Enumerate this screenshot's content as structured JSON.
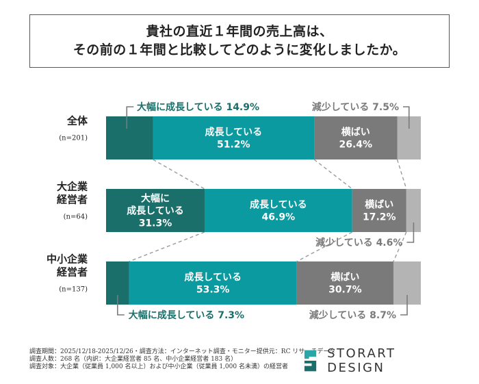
{
  "title": {
    "line1": "貴社の直近１年間の売上高は、",
    "line2": "その前の１年間と比較してどのように変化しましたか。"
  },
  "colors": {
    "dark_teal": "#1b6f6b",
    "teal": "#0a9aa0",
    "gray": "#7a7a7a",
    "light_gray": "#b4b4b4"
  },
  "chart_data": {
    "type": "stacked-bar",
    "orientation": "horizontal",
    "unit": "%",
    "groups": [
      {
        "label_lines": [
          "全体"
        ],
        "n_label": "(n=201)",
        "segments": [
          {
            "name": "大幅に成長している",
            "value": 14.9,
            "label": "大幅に成長している 14.9%"
          },
          {
            "name": "成長している",
            "value": 51.2,
            "label_lines": [
              "成長している",
              "51.2%"
            ]
          },
          {
            "name": "横ばい",
            "value": 26.4,
            "label_lines": [
              "横ばい",
              "26.4%"
            ]
          },
          {
            "name": "減少している",
            "value": 7.5,
            "label": "減少している 7.5%"
          }
        ]
      },
      {
        "label_lines": [
          "大企業",
          "経営者"
        ],
        "n_label": "(n=64)",
        "segments": [
          {
            "name": "大幅に成長している",
            "value": 31.3,
            "label_lines": [
              "大幅に",
              "成長している",
              "31.3%"
            ]
          },
          {
            "name": "成長している",
            "value": 46.9,
            "label_lines": [
              "成長している",
              "46.9%"
            ]
          },
          {
            "name": "横ばい",
            "value": 17.2,
            "label_lines": [
              "横ばい",
              "17.2%"
            ]
          },
          {
            "name": "減少している",
            "value": 4.6,
            "label": "減少している 4.6%"
          }
        ]
      },
      {
        "label_lines": [
          "中小企業",
          "経営者"
        ],
        "n_label": "(n=137)",
        "segments": [
          {
            "name": "大幅に成長している",
            "value": 7.3,
            "label": "大幅に成長している 7.3%"
          },
          {
            "name": "成長している",
            "value": 53.3,
            "label_lines": [
              "成長している",
              "53.3%"
            ]
          },
          {
            "name": "横ばい",
            "value": 30.7,
            "label_lines": [
              "横ばい",
              "30.7%"
            ]
          },
          {
            "name": "減少している",
            "value": 8.7,
            "label": "減少している 8.7%"
          }
        ]
      }
    ]
  },
  "footnotes": [
    "調査期間：2025/12/18-2025/12/26・調査方法：インターネット調査・モニター提供元：RC リサーチデータ",
    "調査人数：268 名（内訳：大企業経営者 85 名、中小企業経営者 183 名）",
    "調査対象：大企業（従業員 1,000 名以上）および中小企業（従業員 1,000 名未満）の経営者"
  ],
  "brand": {
    "name": "STORART DESIGN",
    "logo_icon": "storart-logo-icon"
  }
}
